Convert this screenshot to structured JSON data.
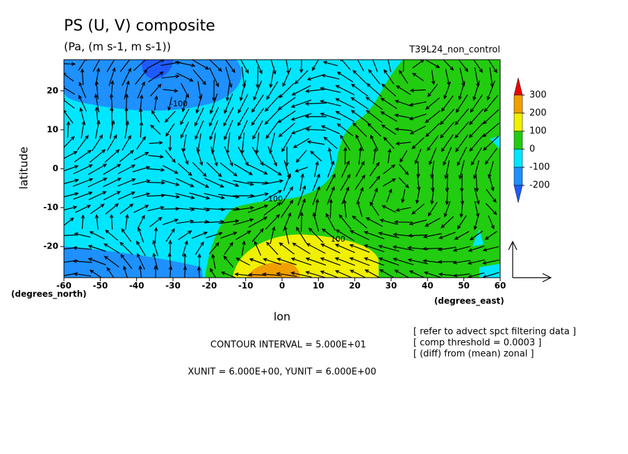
{
  "chart_data": {
    "type": "contour",
    "title": "PS (U, V) composite",
    "subtitle": "(Pa, (m s-1, m s-1))",
    "run_label": "T39L24_non_control",
    "xlabel": "lon",
    "ylabel": "latitude",
    "ylabel_unit": "(degrees_north)",
    "xlabel_unit": "(degrees_east)",
    "xlim": [
      -60,
      60
    ],
    "ylim": [
      -28,
      28
    ],
    "xticks": [
      -60,
      -50,
      -40,
      -30,
      -20,
      -10,
      0,
      10,
      20,
      30,
      40,
      50,
      60
    ],
    "yticks": [
      -20,
      -10,
      0,
      10,
      20
    ],
    "colorbar": {
      "levels": [
        -200,
        -100,
        0,
        100,
        200,
        300
      ],
      "colors": [
        "#1e5aff",
        "#1e90ff",
        "#00e6ff",
        "#22cc10",
        "#f0f000",
        "#f0a000",
        "#f00000"
      ]
    },
    "contour_labels": [
      "-100",
      "-100",
      "100"
    ],
    "notes": [
      "CONTOUR INTERVAL = 5.000E+01",
      "XUNIT = 6.000E+00, YUNIT = 6.000E+00"
    ],
    "side_notes": [
      "[ refer to advect spct filtering data ]",
      "[ comp threshold = 0.0003 ]",
      "[ (diff) from (mean) zonal ]"
    ]
  }
}
